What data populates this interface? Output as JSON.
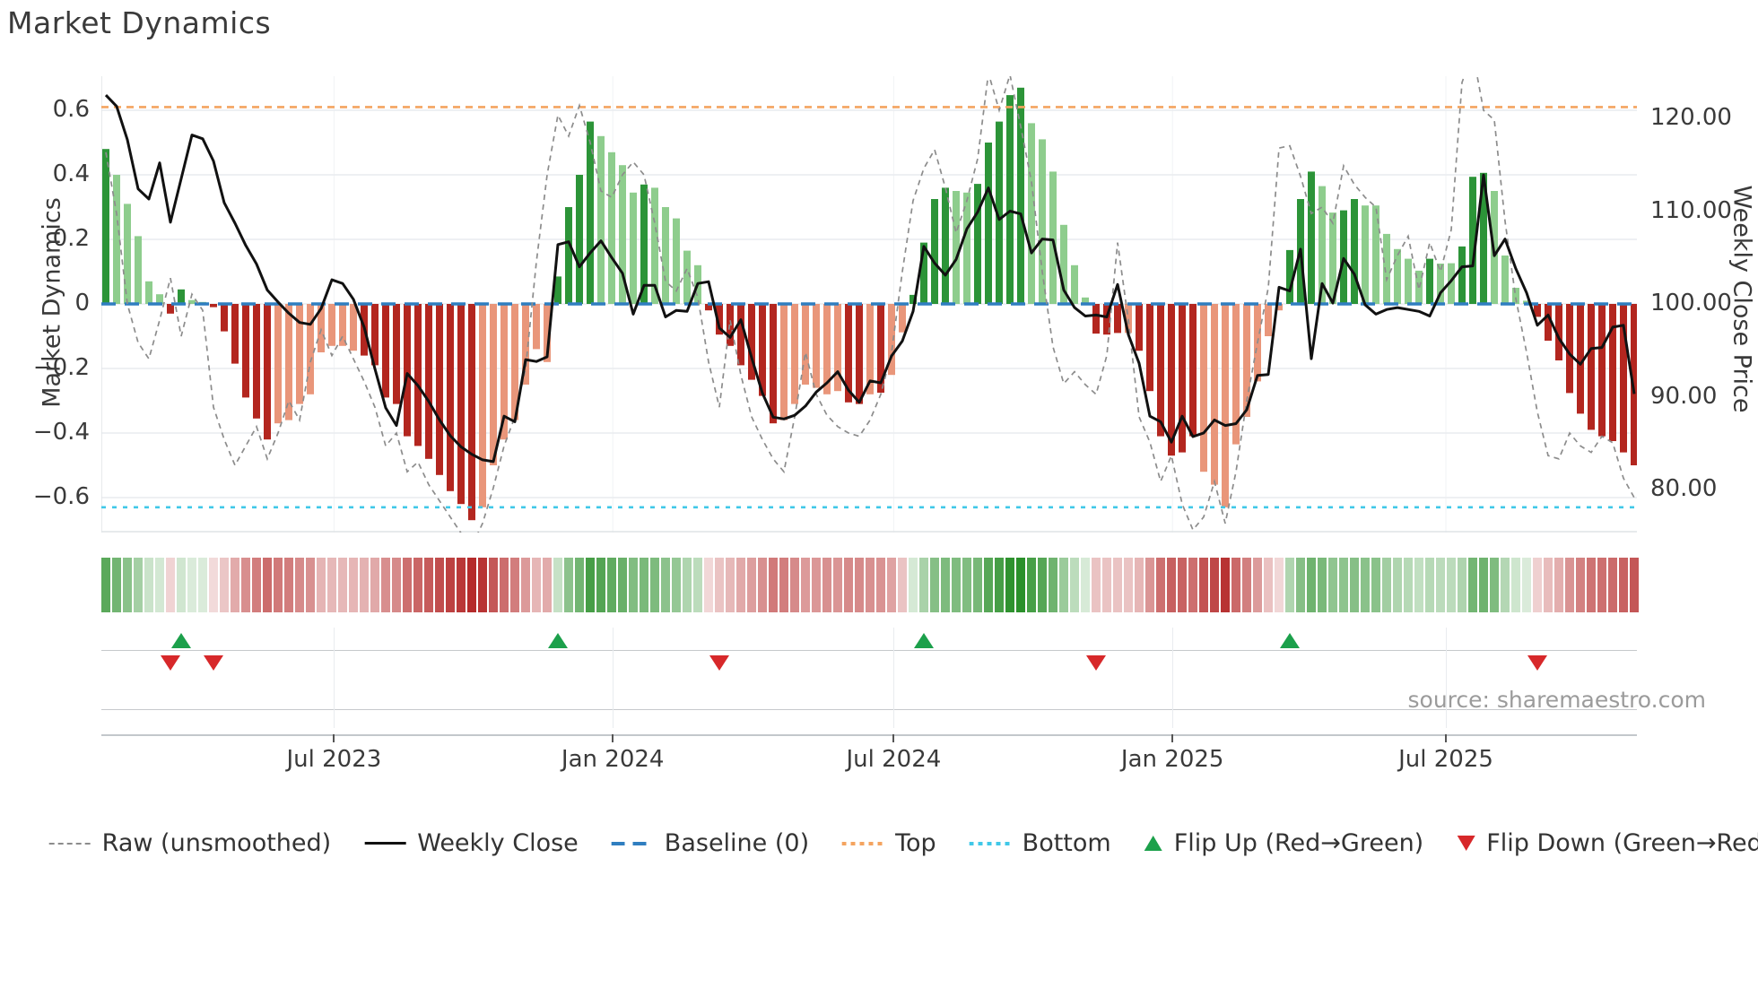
{
  "title": "Market Dynamics",
  "source_text": "source: sharemaestro.com",
  "axes": {
    "left_label": "Market Dynamics",
    "right_label": "Weekly Close Price",
    "left_ticks": [
      {
        "label": "0.6",
        "v": 0.6
      },
      {
        "label": "0.4",
        "v": 0.4
      },
      {
        "label": "0.2",
        "v": 0.2
      },
      {
        "label": "0",
        "v": 0
      },
      {
        "label": "−0.2",
        "v": -0.2
      },
      {
        "label": "−0.4",
        "v": -0.4
      },
      {
        "label": "−0.6",
        "v": -0.6
      }
    ],
    "right_ticks": [
      {
        "label": "120.00",
        "p": 120
      },
      {
        "label": "110.00",
        "p": 110
      },
      {
        "label": "100.00",
        "p": 100
      },
      {
        "label": "90.00",
        "p": 90
      },
      {
        "label": "80.00",
        "p": 80
      }
    ],
    "x_ticks": [
      {
        "label": "Jul 2023",
        "week": 21.2
      },
      {
        "label": "Jan 2024",
        "week": 47.1
      },
      {
        "label": "Jul 2024",
        "week": 73.2
      },
      {
        "label": "Jan 2025",
        "week": 99.1
      },
      {
        "label": "Jul 2025",
        "week": 124.5
      }
    ]
  },
  "colors": {
    "green_dark": "#2c9438",
    "green_light": "#8ecd8d",
    "red_dark": "#b3261f",
    "red_light": "#e9967a",
    "baseline_blue": "#2f7ec0",
    "top_orange": "#f4a460",
    "bottom_cyan": "#40c8e8",
    "raw_gray": "#8c8c8c",
    "close_black": "#111111",
    "flip_up_green": "#1ca04b",
    "flip_down_red": "#d7282a",
    "grid": "#e9ecef",
    "spine": "#dfe3e6"
  },
  "legend": {
    "items": [
      {
        "label": "Raw (unsmoothed)",
        "swatch": "dash-gray"
      },
      {
        "label": "Weekly Close",
        "swatch": "solid-black"
      },
      {
        "label": "Baseline (0)",
        "swatch": "dash-blue"
      },
      {
        "label": "Top",
        "swatch": "dot-orange"
      },
      {
        "label": "Bottom",
        "swatch": "dot-cyan"
      },
      {
        "label": "Flip Up (Red→Green)",
        "swatch": "tri-up"
      },
      {
        "label": "Flip Down (Green→Red)",
        "swatch": "tri-down"
      }
    ]
  },
  "chart_data": {
    "type": "bar+line",
    "title": "Market Dynamics",
    "x_axis": "weekly, Feb 2023 – Oct 2025",
    "left_ylim": [
      -0.72,
      0.72
    ],
    "right_ylim": [
      77.5,
      126.5
    ],
    "baseline": 0,
    "top_line": 0.61,
    "bottom_line": -0.63,
    "grid": "horizontal, light",
    "legend_position": "bottom center",
    "oscillator_bars": [
      [
        0.48,
        "d"
      ],
      [
        0.4,
        "l"
      ],
      [
        0.31,
        "l"
      ],
      [
        0.21,
        "l"
      ],
      [
        0.07,
        "l"
      ],
      [
        0.03,
        "l"
      ],
      [
        -0.03,
        "d"
      ],
      [
        0.045,
        "d"
      ],
      [
        0.012,
        "l"
      ],
      [
        0.006,
        "l"
      ],
      [
        -0.01,
        "d"
      ],
      [
        -0.085,
        "d"
      ],
      [
        -0.185,
        "d"
      ],
      [
        -0.29,
        "d"
      ],
      [
        -0.355,
        "d"
      ],
      [
        -0.42,
        "d"
      ],
      [
        -0.37,
        "l"
      ],
      [
        -0.36,
        "l"
      ],
      [
        -0.31,
        "l"
      ],
      [
        -0.28,
        "l"
      ],
      [
        -0.15,
        "l"
      ],
      [
        -0.13,
        "l"
      ],
      [
        -0.13,
        "l"
      ],
      [
        -0.145,
        "l"
      ],
      [
        -0.16,
        "d"
      ],
      [
        -0.19,
        "d"
      ],
      [
        -0.29,
        "d"
      ],
      [
        -0.31,
        "d"
      ],
      [
        -0.41,
        "d"
      ],
      [
        -0.44,
        "d"
      ],
      [
        -0.48,
        "d"
      ],
      [
        -0.53,
        "d"
      ],
      [
        -0.58,
        "d"
      ],
      [
        -0.62,
        "d"
      ],
      [
        -0.67,
        "d"
      ],
      [
        -0.63,
        "l"
      ],
      [
        -0.5,
        "l"
      ],
      [
        -0.42,
        "l"
      ],
      [
        -0.36,
        "l"
      ],
      [
        -0.25,
        "l"
      ],
      [
        -0.14,
        "l"
      ],
      [
        -0.18,
        "l"
      ],
      [
        0.085,
        "d"
      ],
      [
        0.3,
        "d"
      ],
      [
        0.4,
        "d"
      ],
      [
        0.565,
        "d"
      ],
      [
        0.52,
        "l"
      ],
      [
        0.47,
        "l"
      ],
      [
        0.43,
        "l"
      ],
      [
        0.345,
        "l"
      ],
      [
        0.37,
        "d"
      ],
      [
        0.36,
        "l"
      ],
      [
        0.3,
        "l"
      ],
      [
        0.265,
        "l"
      ],
      [
        0.165,
        "l"
      ],
      [
        0.12,
        "l"
      ],
      [
        -0.02,
        "d"
      ],
      [
        -0.095,
        "d"
      ],
      [
        -0.13,
        "d"
      ],
      [
        -0.19,
        "d"
      ],
      [
        -0.235,
        "d"
      ],
      [
        -0.285,
        "d"
      ],
      [
        -0.37,
        "d"
      ],
      [
        -0.36,
        "l"
      ],
      [
        -0.31,
        "l"
      ],
      [
        -0.25,
        "l"
      ],
      [
        -0.26,
        "l"
      ],
      [
        -0.28,
        "l"
      ],
      [
        -0.27,
        "l"
      ],
      [
        -0.305,
        "d"
      ],
      [
        -0.31,
        "d"
      ],
      [
        -0.28,
        "l"
      ],
      [
        -0.275,
        "d"
      ],
      [
        -0.22,
        "l"
      ],
      [
        -0.088,
        "l"
      ],
      [
        0.028,
        "d"
      ],
      [
        0.19,
        "d"
      ],
      [
        0.325,
        "d"
      ],
      [
        0.36,
        "d"
      ],
      [
        0.35,
        "l"
      ],
      [
        0.345,
        "l"
      ],
      [
        0.372,
        "d"
      ],
      [
        0.5,
        "d"
      ],
      [
        0.565,
        "d"
      ],
      [
        0.647,
        "d"
      ],
      [
        0.67,
        "d"
      ],
      [
        0.56,
        "l"
      ],
      [
        0.51,
        "l"
      ],
      [
        0.41,
        "l"
      ],
      [
        0.245,
        "l"
      ],
      [
        0.12,
        "l"
      ],
      [
        0.02,
        "l"
      ],
      [
        -0.092,
        "d"
      ],
      [
        -0.095,
        "d"
      ],
      [
        -0.09,
        "d"
      ],
      [
        -0.09,
        "l"
      ],
      [
        -0.145,
        "d"
      ],
      [
        -0.27,
        "d"
      ],
      [
        -0.41,
        "d"
      ],
      [
        -0.47,
        "d"
      ],
      [
        -0.46,
        "d"
      ],
      [
        -0.41,
        "d"
      ],
      [
        -0.52,
        "l"
      ],
      [
        -0.56,
        "l"
      ],
      [
        -0.63,
        "l"
      ],
      [
        -0.435,
        "l"
      ],
      [
        -0.35,
        "l"
      ],
      [
        -0.24,
        "l"
      ],
      [
        -0.1,
        "l"
      ],
      [
        -0.02,
        "l"
      ],
      [
        0.167,
        "d"
      ],
      [
        0.325,
        "d"
      ],
      [
        0.41,
        "d"
      ],
      [
        0.365,
        "l"
      ],
      [
        0.283,
        "l"
      ],
      [
        0.29,
        "d"
      ],
      [
        0.325,
        "d"
      ],
      [
        0.305,
        "l"
      ],
      [
        0.305,
        "l"
      ],
      [
        0.217,
        "l"
      ],
      [
        0.17,
        "l"
      ],
      [
        0.14,
        "l"
      ],
      [
        0.103,
        "l"
      ],
      [
        0.14,
        "d"
      ],
      [
        0.125,
        "l"
      ],
      [
        0.126,
        "l"
      ],
      [
        0.178,
        "d"
      ],
      [
        0.394,
        "d"
      ],
      [
        0.406,
        "d"
      ],
      [
        0.35,
        "l"
      ],
      [
        0.15,
        "l"
      ],
      [
        0.05,
        "l"
      ],
      [
        0.01,
        "l"
      ],
      [
        -0.04,
        "d"
      ],
      [
        -0.114,
        "d"
      ],
      [
        -0.175,
        "d"
      ],
      [
        -0.276,
        "d"
      ],
      [
        -0.34,
        "d"
      ],
      [
        -0.39,
        "d"
      ],
      [
        -0.41,
        "d"
      ],
      [
        -0.425,
        "d"
      ],
      [
        -0.46,
        "d"
      ],
      [
        -0.5,
        "d"
      ]
    ],
    "weekly_close": [
      122.5,
      121.3,
      117.7,
      112.4,
      111.3,
      115.2,
      108.8,
      113.5,
      118.2,
      117.8,
      115.4,
      110.9,
      108.7,
      106.3,
      104.3,
      101.5,
      100.2,
      99.0,
      98.0,
      97.8,
      99.5,
      102.6,
      102.2,
      100.5,
      97.5,
      93.0,
      88.8,
      86.9,
      92.5,
      91.2,
      89.5,
      87.5,
      85.8,
      84.6,
      83.8,
      83.2,
      83.0,
      87.9,
      87.3,
      94.0,
      93.8,
      94.3,
      106.4,
      106.7,
      104.0,
      105.5,
      106.8,
      105.0,
      103.3,
      98.9,
      102.0,
      102.0,
      98.6,
      99.3,
      99.2,
      102.2,
      102.4,
      97.4,
      96.4,
      98.3,
      94.2,
      90.4,
      87.8,
      87.6,
      88.0,
      89.0,
      90.5,
      91.5,
      92.7,
      90.7,
      89.4,
      91.7,
      91.5,
      94.4,
      96.0,
      99.2,
      106.2,
      104.4,
      103.1,
      104.8,
      108.1,
      109.9,
      112.5,
      109.1,
      110.0,
      109.7,
      105.5,
      107.0,
      106.9,
      101.5,
      99.6,
      98.7,
      98.8,
      98.6,
      102.1,
      96.7,
      93.6,
      87.9,
      87.3,
      85.1,
      87.9,
      85.7,
      86.1,
      87.5,
      86.9,
      87.1,
      88.6,
      92.3,
      92.4,
      101.8,
      101.4,
      105.9,
      94.1,
      102.2,
      100.1,
      104.9,
      103.2,
      99.9,
      98.9,
      99.4,
      99.6,
      99.4,
      99.2,
      98.7,
      101.2,
      102.5,
      104.0,
      104.1,
      113.9,
      105.2,
      107.0,
      103.8,
      101.2,
      97.7,
      98.8,
      96.3,
      94.6,
      93.5,
      95.2,
      95.3,
      97.5,
      97.7,
      90.3
    ],
    "raw_unsmoothed": [
      0.47,
      0.28,
      0.0,
      -0.12,
      -0.17,
      -0.05,
      0.08,
      -0.1,
      0.03,
      -0.02,
      -0.32,
      -0.42,
      -0.5,
      -0.44,
      -0.38,
      -0.48,
      -0.4,
      -0.3,
      -0.36,
      -0.18,
      -0.08,
      -0.16,
      -0.1,
      -0.17,
      -0.24,
      -0.32,
      -0.44,
      -0.4,
      -0.52,
      -0.49,
      -0.56,
      -0.61,
      -0.66,
      -0.71,
      -0.75,
      -0.68,
      -0.57,
      -0.44,
      -0.35,
      -0.2,
      0.13,
      0.4,
      0.585,
      0.52,
      0.615,
      0.5,
      0.35,
      0.33,
      0.4,
      0.44,
      0.4,
      0.25,
      0.07,
      0.04,
      0.11,
      0.02,
      -0.18,
      -0.32,
      -0.05,
      -0.22,
      -0.35,
      -0.42,
      -0.48,
      -0.52,
      -0.35,
      -0.15,
      -0.28,
      -0.345,
      -0.38,
      -0.4,
      -0.41,
      -0.36,
      -0.28,
      -0.15,
      0.1,
      0.32,
      0.42,
      0.478,
      0.36,
      0.22,
      0.32,
      0.45,
      0.715,
      0.6,
      0.71,
      0.55,
      0.378,
      0.1,
      -0.133,
      -0.247,
      -0.21,
      -0.25,
      -0.28,
      -0.16,
      0.19,
      -0.05,
      -0.35,
      -0.428,
      -0.55,
      -0.47,
      -0.62,
      -0.7,
      -0.66,
      -0.55,
      -0.68,
      -0.52,
      -0.3,
      -0.12,
      0.05,
      0.483,
      0.49,
      0.395,
      0.28,
      0.3,
      0.25,
      0.428,
      0.37,
      0.33,
      0.3,
      0.075,
      0.15,
      0.21,
      0.044,
      0.19,
      0.1,
      0.23,
      0.686,
      0.78,
      0.6,
      0.57,
      0.256,
      0.016,
      -0.15,
      -0.335,
      -0.47,
      -0.48,
      -0.4,
      -0.44,
      -0.46,
      -0.41,
      -0.43,
      -0.54,
      -0.6
    ],
    "flip_up_weeks": [
      7,
      42,
      76,
      110
    ],
    "flip_down_weeks": [
      6,
      10,
      57,
      92,
      133
    ]
  }
}
